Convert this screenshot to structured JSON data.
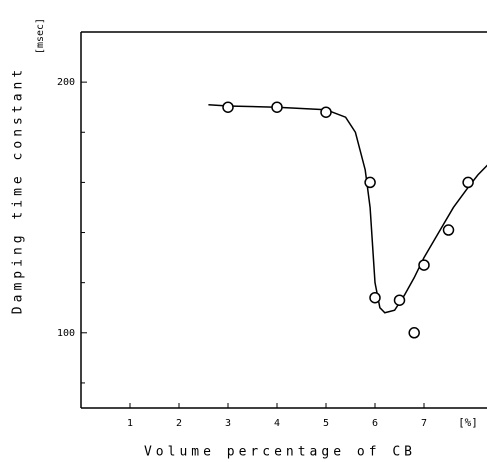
{
  "chart_data": {
    "type": "scatter",
    "ylabel": "Damping time constant",
    "yunit": "[msec]",
    "xlabel": "Volume percentage of CB",
    "xunit": "[%]",
    "xlim": [
      0,
      8.3
    ],
    "ylim": [
      70,
      220
    ],
    "xticks": [
      1,
      2,
      3,
      4,
      5,
      6,
      7
    ],
    "yticks": [
      100,
      200
    ],
    "yminor_ticks": [
      80,
      120,
      140,
      160,
      180
    ],
    "color": "#000000",
    "series": [
      {
        "type": "scatter",
        "x": [
          3,
          4,
          5,
          5.9,
          6,
          6.5,
          6.8,
          7,
          7.5,
          7.9
        ],
        "values": [
          190,
          190,
          188,
          160,
          114,
          113,
          100,
          127,
          141,
          160
        ]
      },
      {
        "type": "line",
        "x": [
          2.6,
          3,
          4,
          5,
          5.4,
          5.6,
          5.8,
          5.9,
          6,
          6.1,
          6.2,
          6.4,
          6.6,
          6.8,
          7,
          7.3,
          7.6,
          7.9,
          8.1,
          8.3
        ],
        "values": [
          191,
          190.5,
          190,
          189,
          186,
          180,
          165,
          150,
          120,
          110,
          108,
          109,
          115,
          122,
          130,
          140,
          150,
          158,
          163,
          167
        ]
      }
    ]
  }
}
